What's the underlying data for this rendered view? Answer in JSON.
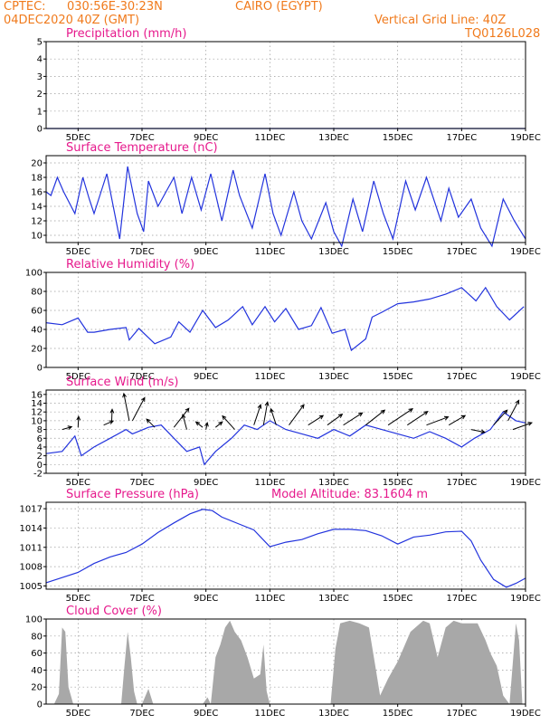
{
  "header": {
    "source": "CPTEC:",
    "coords": "030:56E-30:23N",
    "location": "CAIRO (EGYPT)",
    "datetime": "04DEC2020 40Z (GMT)",
    "grid_note": "Vertical Grid Line: 40Z",
    "model_code": "TQ0126L028",
    "model_altitude": "Model Altitude: 83.1604 m"
  },
  "x_ticks": [
    "5DEC",
    "7DEC",
    "9DEC",
    "11DEC",
    "13DEC",
    "15DEC",
    "17DEC",
    "19DEC"
  ],
  "colors": {
    "header": "#f07a1c",
    "title": "#e6198c",
    "line": "#2233dd",
    "bars": "#a8a8a8",
    "grid": "#999999"
  },
  "chart_data": [
    {
      "type": "line",
      "title": "Precipitation (mm/h)",
      "ylim": [
        0,
        5
      ],
      "yticks": [
        "5",
        "4",
        "3",
        "2",
        "1",
        "0"
      ],
      "xlim": [
        4.0,
        19.0
      ],
      "x": [
        4.0,
        19.0
      ],
      "series": [
        {
          "values": [
            0,
            0
          ]
        }
      ]
    },
    {
      "type": "line",
      "title": "Surface Temperature (nC)",
      "ylim": [
        9,
        21
      ],
      "yticks": [
        "20",
        "18",
        "16",
        "14",
        "12",
        "10"
      ],
      "xlim": [
        4.0,
        19.0
      ],
      "x": [
        4.0,
        4.15,
        4.35,
        4.55,
        4.9,
        5.15,
        5.35,
        5.5,
        5.9,
        6.1,
        6.3,
        6.55,
        6.85,
        7.05,
        7.2,
        7.5,
        8.0,
        8.25,
        8.55,
        8.85,
        9.15,
        9.5,
        9.85,
        10.05,
        10.45,
        10.85,
        11.1,
        11.35,
        11.75,
        12.0,
        12.3,
        12.75,
        13.0,
        13.25,
        13.6,
        13.9,
        14.25,
        14.55,
        14.85,
        15.25,
        15.55,
        15.9,
        16.35,
        16.6,
        16.9,
        17.3,
        17.6,
        17.95,
        18.3,
        18.65,
        19.0
      ],
      "series": [
        {
          "values": [
            16,
            15.5,
            18,
            16,
            13,
            18,
            15,
            13,
            18.5,
            14,
            9.5,
            19.5,
            13,
            10.5,
            17.5,
            14,
            18,
            13,
            18,
            13.5,
            18.5,
            12,
            19,
            15.5,
            11,
            18.5,
            13,
            10,
            16,
            12,
            9.5,
            14.5,
            10.5,
            8.5,
            15,
            10.5,
            17.5,
            13,
            9.5,
            17.5,
            13.5,
            18,
            12,
            16.5,
            12.5,
            15,
            11,
            8.5,
            15,
            12,
            9.5
          ]
        }
      ]
    },
    {
      "type": "line",
      "title": "Relative Humidity (%)",
      "ylim": [
        0,
        100
      ],
      "yticks": [
        "100",
        "80",
        "60",
        "40",
        "20",
        "0"
      ],
      "xlim": [
        4.0,
        19.0
      ],
      "x": [
        4.0,
        4.5,
        5.0,
        5.3,
        5.5,
        6.0,
        6.5,
        6.6,
        6.9,
        7.4,
        7.9,
        8.15,
        8.5,
        8.9,
        9.3,
        9.7,
        10.15,
        10.45,
        10.85,
        11.15,
        11.5,
        11.9,
        12.3,
        12.6,
        12.95,
        13.35,
        13.55,
        14.0,
        14.2,
        14.5,
        15.0,
        15.5,
        16.0,
        16.5,
        17.0,
        17.45,
        17.75,
        18.1,
        18.5,
        18.95
      ],
      "series": [
        {
          "values": [
            47,
            45,
            52,
            37,
            37,
            40,
            42,
            29,
            41,
            25,
            32,
            48,
            37,
            60,
            42,
            50,
            64,
            45,
            64,
            48,
            62,
            40,
            44,
            63,
            36,
            40,
            18,
            30,
            53,
            58,
            67,
            69,
            72,
            77,
            84,
            70,
            84,
            64,
            50,
            64
          ]
        }
      ]
    },
    {
      "type": "line",
      "title": "Surface Wind (m/s)",
      "ylim": [
        -2,
        17
      ],
      "yticks": [
        "16",
        "14",
        "12",
        "10",
        "8",
        "6",
        "4",
        "2",
        "0",
        "-2"
      ],
      "xlim": [
        4.0,
        19.0
      ],
      "x": [
        4.0,
        4.5,
        4.9,
        5.1,
        5.5,
        6.0,
        6.5,
        6.7,
        7.2,
        7.6,
        8.0,
        8.4,
        8.8,
        8.95,
        9.3,
        9.8,
        10.2,
        10.6,
        11.0,
        11.5,
        12.0,
        12.5,
        13.0,
        13.5,
        14.0,
        14.5,
        15.0,
        15.5,
        16.0,
        16.5,
        17.0,
        17.4,
        17.9,
        18.3,
        18.7,
        19.0
      ],
      "series": [
        {
          "values": [
            2.5,
            3,
            6.5,
            2,
            4,
            6,
            8,
            7,
            8.5,
            9,
            6,
            3,
            4,
            0,
            3,
            6,
            9,
            8,
            10,
            8,
            7,
            6,
            8,
            6.5,
            9,
            8,
            7,
            6,
            7.5,
            6,
            4,
            6,
            8,
            12,
            10,
            9.5
          ]
        }
      ],
      "arrows": [
        {
          "x": 4.5,
          "y": 8,
          "u": 0.35,
          "v": 0.1
        },
        {
          "x": 5.0,
          "y": 8.5,
          "u": 0.02,
          "v": 0.4
        },
        {
          "x": 5.8,
          "y": 9,
          "u": 0.35,
          "v": 0.15
        },
        {
          "x": 6.05,
          "y": 9.5,
          "u": 0.02,
          "v": 0.5
        },
        {
          "x": 6.6,
          "y": 10,
          "u": -0.2,
          "v": 1.0
        },
        {
          "x": 6.7,
          "y": 10,
          "u": 0.45,
          "v": 0.85
        },
        {
          "x": 7.4,
          "y": 8.5,
          "u": -0.3,
          "v": 0.3
        },
        {
          "x": 8.0,
          "y": 8.5,
          "u": 0.55,
          "v": 0.7
        },
        {
          "x": 8.4,
          "y": 8,
          "u": -0.15,
          "v": 0.55
        },
        {
          "x": 8.9,
          "y": 8.5,
          "u": -0.25,
          "v": 0.2
        },
        {
          "x": 9.0,
          "y": 8,
          "u": 0.05,
          "v": 0.25
        },
        {
          "x": 9.3,
          "y": 8.5,
          "u": 0.25,
          "v": 0.2
        },
        {
          "x": 9.9,
          "y": 8,
          "u": -0.45,
          "v": 0.5
        },
        {
          "x": 10.5,
          "y": 9,
          "u": 0.25,
          "v": 0.75
        },
        {
          "x": 10.8,
          "y": 9,
          "u": 0.15,
          "v": 0.85
        },
        {
          "x": 11.2,
          "y": 9,
          "u": -0.2,
          "v": 0.6
        },
        {
          "x": 11.6,
          "y": 9,
          "u": 0.55,
          "v": 0.75
        },
        {
          "x": 12.2,
          "y": 9,
          "u": 0.55,
          "v": 0.35
        },
        {
          "x": 12.8,
          "y": 9,
          "u": 0.55,
          "v": 0.4
        },
        {
          "x": 13.3,
          "y": 9,
          "u": 0.7,
          "v": 0.45
        },
        {
          "x": 14.0,
          "y": 9,
          "u": 0.7,
          "v": 0.55
        },
        {
          "x": 14.7,
          "y": 9,
          "u": 0.9,
          "v": 0.6
        },
        {
          "x": 15.3,
          "y": 9,
          "u": 0.75,
          "v": 0.5
        },
        {
          "x": 15.9,
          "y": 9,
          "u": 0.8,
          "v": 0.3
        },
        {
          "x": 16.6,
          "y": 9,
          "u": 0.6,
          "v": 0.35
        },
        {
          "x": 17.3,
          "y": 8,
          "u": 0.5,
          "v": -0.1
        },
        {
          "x": 18.0,
          "y": 9,
          "u": 0.5,
          "v": 0.55
        },
        {
          "x": 18.45,
          "y": 10,
          "u": 0.4,
          "v": 0.75
        },
        {
          "x": 18.6,
          "y": 8,
          "u": 0.7,
          "v": 0.25
        }
      ]
    },
    {
      "type": "line",
      "title": "Surface Pressure (hPa)",
      "ylim": [
        1004.5,
        1018
      ],
      "yticks": [
        "1017",
        "1014",
        "1011",
        "1008",
        "1005"
      ],
      "xlim": [
        4.0,
        19.0
      ],
      "x": [
        4.0,
        4.5,
        5.0,
        5.5,
        6.0,
        6.5,
        7.0,
        7.5,
        8.0,
        8.5,
        8.9,
        9.2,
        9.5,
        10.0,
        10.5,
        11.0,
        11.5,
        12.0,
        12.5,
        13.0,
        13.5,
        14.0,
        14.5,
        15.0,
        15.5,
        16.0,
        16.5,
        17.0,
        17.3,
        17.6,
        18.0,
        18.4,
        18.7,
        19.0
      ],
      "series": [
        {
          "values": [
            1005.5,
            1006.3,
            1007.1,
            1008.5,
            1009.5,
            1010.2,
            1011.5,
            1013.3,
            1014.8,
            1016.2,
            1016.9,
            1016.7,
            1015.7,
            1014.7,
            1013.7,
            1011.1,
            1011.8,
            1012.2,
            1013.1,
            1013.8,
            1013.8,
            1013.6,
            1012.8,
            1011.5,
            1012.6,
            1012.9,
            1013.4,
            1013.5,
            1012.0,
            1009.0,
            1006.0,
            1004.8,
            1005.4,
            1006.2
          ]
        }
      ]
    },
    {
      "type": "bar",
      "title": "Cloud Cover (%)",
      "ylim": [
        0,
        100
      ],
      "yticks": [
        "100",
        "80",
        "60",
        "40",
        "20",
        "0"
      ],
      "xlim": [
        4.0,
        19.0
      ],
      "x": [
        4.0,
        4.25,
        4.4,
        4.5,
        4.6,
        4.7,
        4.85,
        6.35,
        6.45,
        6.55,
        6.65,
        6.75,
        6.85,
        7.0,
        7.2,
        7.35,
        8.9,
        9.05,
        9.15,
        9.3,
        9.45,
        9.6,
        9.75,
        9.9,
        10.1,
        10.3,
        10.5,
        10.7,
        10.8,
        10.9,
        11.0,
        11.1,
        12.9,
        13.05,
        13.2,
        13.5,
        13.8,
        14.1,
        14.3,
        14.45,
        14.7,
        15.0,
        15.4,
        15.8,
        16.0,
        16.25,
        16.5,
        16.75,
        17.0,
        17.25,
        17.5,
        17.75,
        17.9,
        18.1,
        18.3,
        18.5,
        18.7,
        18.8,
        18.9,
        19.0
      ],
      "values": [
        0,
        0,
        12,
        90,
        85,
        20,
        0,
        0,
        45,
        85,
        55,
        15,
        0,
        0,
        18,
        0,
        0,
        8,
        0,
        55,
        70,
        90,
        98,
        85,
        75,
        55,
        30,
        35,
        70,
        15,
        0,
        0,
        0,
        65,
        95,
        98,
        95,
        90,
        45,
        10,
        30,
        50,
        85,
        98,
        95,
        55,
        90,
        98,
        95,
        95,
        95,
        75,
        60,
        45,
        10,
        0,
        95,
        75,
        0,
        0
      ]
    }
  ]
}
